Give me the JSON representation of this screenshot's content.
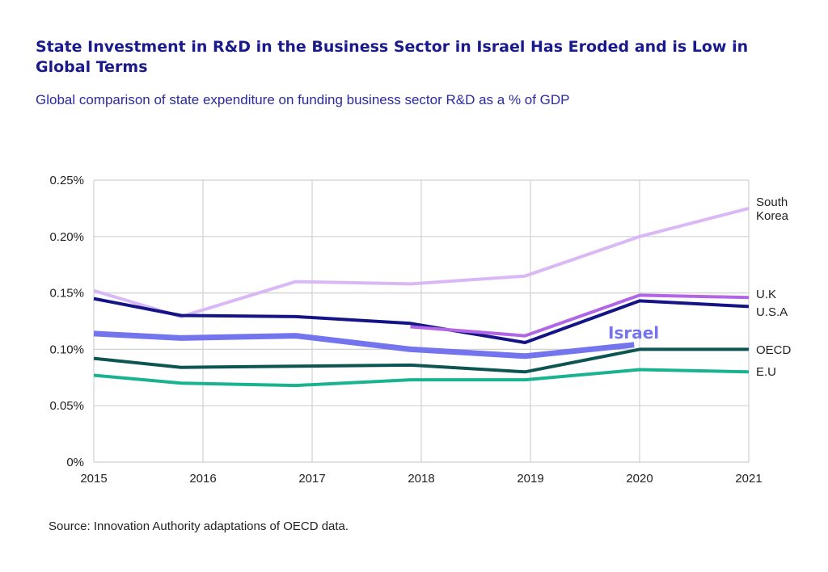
{
  "title": "State Investment in R&D in the Business Sector in Israel Has Eroded and is Low in Global Terms",
  "subtitle": "Global comparison of state expenditure on funding business sector R&D as a % of GDP",
  "source": "Source: Innovation Authority adaptations of OECD data.",
  "chart_data": {
    "type": "line",
    "title": "State Investment in R&D in the Business Sector in Israel Has Eroded and is Low in Global Terms",
    "subtitle": "Global comparison of state expenditure on funding business sector R&D as a % of GDP",
    "x": [
      2015,
      2016,
      2017,
      2018,
      2019,
      2020,
      2021
    ],
    "x_tick_labels": [
      "2015",
      "2016",
      "2017",
      "2018",
      "2019",
      "2020",
      "2021"
    ],
    "y_tick_labels": [
      "0%",
      "0.05%",
      "0.10%",
      "0.15%",
      "0.20%",
      "0.25%"
    ],
    "y_ticks": [
      0,
      0.05,
      0.1,
      0.15,
      0.2,
      0.25
    ],
    "ylim": [
      0,
      0.25
    ],
    "xlim": [
      2015,
      2021
    ],
    "grid": true,
    "legend": "inline labels at right end of lines",
    "series": [
      {
        "name": "South Korea",
        "color": "#d9b8f5",
        "width": 4,
        "points": [
          [
            2015,
            0.152
          ],
          [
            2015.8,
            0.129
          ],
          [
            2016.85,
            0.16
          ],
          [
            2017.9,
            0.158
          ],
          [
            2018.95,
            0.165
          ],
          [
            2020,
            0.2
          ],
          [
            2021,
            0.225
          ]
        ]
      },
      {
        "name": "U.K",
        "color": "#b266e6",
        "width": 4,
        "points": [
          [
            2017.9,
            0.12
          ],
          [
            2018.95,
            0.112
          ],
          [
            2020,
            0.148
          ],
          [
            2021,
            0.146
          ]
        ]
      },
      {
        "name": "U.S.A",
        "color": "#141486",
        "width": 4,
        "points": [
          [
            2015,
            0.145
          ],
          [
            2015.8,
            0.13
          ],
          [
            2016.85,
            0.129
          ],
          [
            2017.9,
            0.123
          ],
          [
            2018.95,
            0.106
          ],
          [
            2020,
            0.143
          ],
          [
            2021,
            0.138
          ]
        ]
      },
      {
        "name": "Israel",
        "color": "#7474ee",
        "width": 7,
        "points": [
          [
            2015,
            0.114
          ],
          [
            2015.8,
            0.11
          ],
          [
            2016.85,
            0.112
          ],
          [
            2017.9,
            0.1
          ],
          [
            2018.95,
            0.094
          ],
          [
            2019.95,
            0.104
          ]
        ]
      },
      {
        "name": "OECD",
        "color": "#0d5552",
        "width": 4,
        "points": [
          [
            2015,
            0.092
          ],
          [
            2015.8,
            0.084
          ],
          [
            2016.85,
            0.085
          ],
          [
            2017.9,
            0.086
          ],
          [
            2018.95,
            0.08
          ],
          [
            2020,
            0.1
          ],
          [
            2021,
            0.1
          ]
        ]
      },
      {
        "name": "E.U",
        "color": "#1ab391",
        "width": 4,
        "points": [
          [
            2015,
            0.077
          ],
          [
            2015.8,
            0.07
          ],
          [
            2016.85,
            0.068
          ],
          [
            2017.9,
            0.073
          ],
          [
            2018.95,
            0.073
          ],
          [
            2020,
            0.082
          ],
          [
            2021,
            0.08
          ]
        ]
      }
    ],
    "series_labels": [
      {
        "series": "South Korea",
        "lines": [
          "South",
          "Korea"
        ]
      },
      {
        "series": "U.K",
        "lines": [
          "U.K"
        ]
      },
      {
        "series": "U.S.A",
        "lines": [
          "U.S.A"
        ]
      },
      {
        "series": "OECD",
        "lines": [
          "OECD"
        ]
      },
      {
        "series": "E.U",
        "lines": [
          "E.U"
        ]
      },
      {
        "series": "Israel",
        "lines": [
          "Israel"
        ]
      }
    ]
  }
}
